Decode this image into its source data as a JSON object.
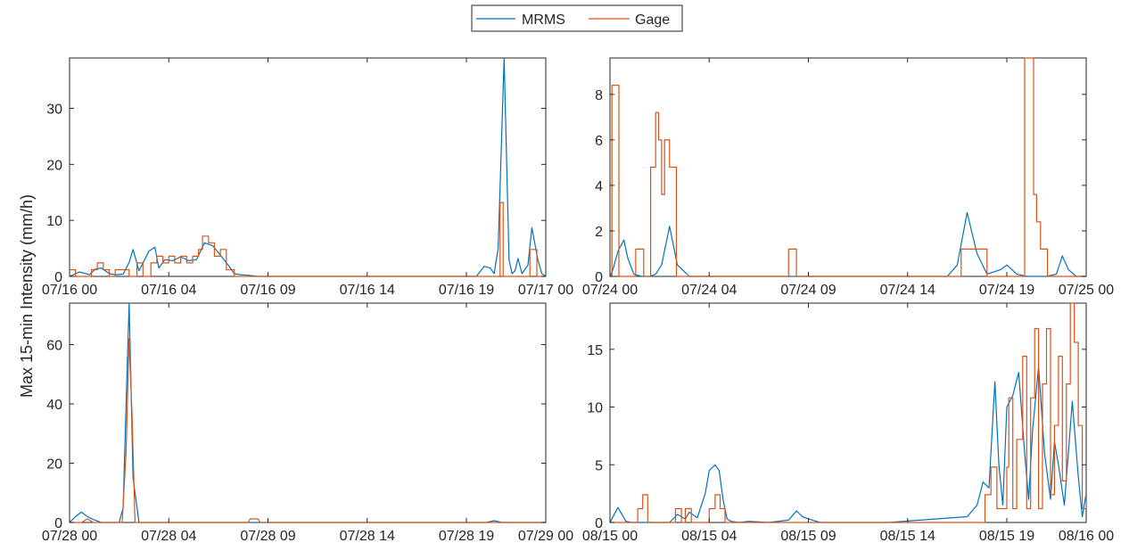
{
  "figure": {
    "ylabel": "Max 15-min Intensity (mm/h)",
    "colors": {
      "MRMS": "#0072BD",
      "Gage": "#D95319"
    }
  },
  "legend": {
    "position": "top-center",
    "entries": [
      {
        "name": "MRMS",
        "color": "#0072BD"
      },
      {
        "name": "Gage",
        "color": "#D95319"
      }
    ]
  },
  "chart_data": [
    {
      "type": "line",
      "panel": "top-left",
      "xlim": [
        0,
        24
      ],
      "ylim": [
        0,
        39
      ],
      "xticks": [
        0,
        5,
        10,
        15,
        20,
        24
      ],
      "xticklabels": [
        "07/16 00",
        "07/16 04",
        "07/16 09",
        "07/16 14",
        "07/16 19",
        "07/17 00"
      ],
      "yticks": [
        0,
        10,
        20,
        30
      ],
      "yticklabels": [
        "0",
        "10",
        "20",
        "30"
      ],
      "grid": false,
      "series": [
        {
          "name": "MRMS",
          "color": "#0072BD",
          "step": false,
          "x": [
            0,
            0.5,
            1.0,
            1.3,
            1.6,
            2.0,
            2.3,
            2.7,
            3.0,
            3.2,
            3.5,
            4.0,
            4.3,
            4.5,
            4.8,
            5.2,
            5.6,
            6.0,
            6.4,
            6.8,
            7.2,
            7.6,
            8.0,
            8.3,
            8.6,
            9.0,
            9.5,
            10.0,
            12.0,
            15.0,
            18.0,
            20.5,
            20.9,
            21.2,
            21.4,
            21.6,
            21.9,
            22.15,
            22.3,
            22.45,
            22.6,
            22.8,
            23.1,
            23.3,
            23.6,
            23.8,
            24.0
          ],
          "y": [
            0,
            0.8,
            0.3,
            1.3,
            1.5,
            0.5,
            0.3,
            0.4,
            2.5,
            4.8,
            1.0,
            4.5,
            5.2,
            1.5,
            3.0,
            2.8,
            3.5,
            2.8,
            3.0,
            6.0,
            5.5,
            3.8,
            2.0,
            0.5,
            0.3,
            0.2,
            0,
            0,
            0,
            0,
            0,
            0,
            1.8,
            1.5,
            0.5,
            5.0,
            39.0,
            3.0,
            0.5,
            1.0,
            3.2,
            0.5,
            2.0,
            8.7,
            3.0,
            0.5,
            0
          ]
        },
        {
          "name": "Gage",
          "color": "#D95319",
          "step": true,
          "x": [
            0,
            0.3,
            0.6,
            1.1,
            1.4,
            1.7,
            2.0,
            2.3,
            3.0,
            3.4,
            3.7,
            4.1,
            4.4,
            4.7,
            5.0,
            5.3,
            5.6,
            5.9,
            6.2,
            6.5,
            6.7,
            7.0,
            7.3,
            7.6,
            7.9,
            8.3,
            8.6,
            21.7,
            21.85,
            22.1,
            23.2,
            23.55,
            24.0
          ],
          "y": [
            1.2,
            0,
            0,
            1.2,
            2.4,
            1.2,
            0,
            1.2,
            0,
            2.4,
            0,
            2.4,
            3.6,
            2.4,
            3.6,
            2.4,
            3.6,
            2.4,
            3.6,
            4.8,
            7.2,
            6.0,
            3.6,
            4.8,
            1.2,
            0,
            0,
            13.2,
            0,
            0,
            4.8,
            0,
            0
          ]
        }
      ]
    },
    {
      "type": "line",
      "panel": "top-right",
      "xlim": [
        0,
        24
      ],
      "ylim": [
        0,
        9.6
      ],
      "xticks": [
        0,
        5,
        10,
        15,
        20,
        24
      ],
      "xticklabels": [
        "07/24 00",
        "07/24 04",
        "07/24 09",
        "07/24 14",
        "07/24 19",
        "07/25 00"
      ],
      "yticks": [
        0,
        2,
        4,
        6,
        8
      ],
      "yticklabels": [
        "0",
        "2",
        "4",
        "6",
        "8"
      ],
      "grid": false,
      "series": [
        {
          "name": "MRMS",
          "color": "#0072BD",
          "step": false,
          "x": [
            0,
            0.15,
            0.4,
            0.7,
            0.9,
            1.2,
            1.6,
            2.0,
            2.3,
            2.6,
            3.0,
            3.4,
            4.0,
            8.0,
            12.0,
            16.0,
            17.0,
            17.5,
            18.0,
            18.5,
            19.0,
            19.7,
            20.0,
            20.5,
            21.0,
            22.0,
            22.5,
            22.8,
            23.1,
            23.5,
            24.0
          ],
          "y": [
            0,
            0.3,
            1.1,
            1.6,
            0.8,
            0.1,
            0,
            0,
            0.1,
            0.5,
            2.2,
            0.5,
            0,
            0,
            0,
            0,
            0,
            0.5,
            2.8,
            1.0,
            0.1,
            0.3,
            0.5,
            0.1,
            0,
            0,
            0.1,
            0.9,
            0.3,
            0,
            0
          ]
        },
        {
          "name": "Gage",
          "color": "#D95319",
          "step": true,
          "x": [
            0,
            0.1,
            0.45,
            0.9,
            1.3,
            1.7,
            2.05,
            2.3,
            2.45,
            2.6,
            2.75,
            3.0,
            3.35,
            3.7,
            9.0,
            9.4,
            17.7,
            18.45,
            19.0,
            20.9,
            21.35,
            21.5,
            21.7,
            21.85,
            22.05,
            22.5,
            24.0
          ],
          "y": [
            0,
            8.4,
            0,
            0,
            1.2,
            0,
            4.8,
            7.2,
            6.0,
            3.6,
            6.0,
            4.8,
            0,
            0,
            1.2,
            0,
            1.2,
            1.2,
            0,
            9.6,
            3.6,
            2.4,
            1.2,
            1.2,
            0,
            0,
            0
          ]
        }
      ]
    },
    {
      "type": "line",
      "panel": "bottom-left",
      "xlim": [
        0,
        24
      ],
      "ylim": [
        0,
        74
      ],
      "xticks": [
        0,
        5,
        10,
        15,
        20,
        24
      ],
      "xticklabels": [
        "07/28 00",
        "07/28 04",
        "07/28 09",
        "07/28 14",
        "07/28 19",
        "07/29 00"
      ],
      "yticks": [
        0,
        20,
        40,
        60
      ],
      "yticklabels": [
        "0",
        "20",
        "40",
        "60"
      ],
      "grid": false,
      "series": [
        {
          "name": "MRMS",
          "color": "#0072BD",
          "step": false,
          "x": [
            0,
            0.3,
            0.6,
            0.9,
            1.2,
            1.6,
            2.0,
            2.5,
            2.7,
            2.85,
            3.0,
            3.2,
            3.5,
            4.0,
            8.0,
            12.0,
            18.0,
            21.0,
            21.4,
            21.8,
            24.0
          ],
          "y": [
            0,
            2.0,
            3.5,
            2.0,
            1.0,
            0,
            0,
            0,
            5.0,
            40.0,
            74.0,
            15.0,
            0,
            0,
            0,
            0,
            0,
            0,
            0.6,
            0,
            0
          ]
        },
        {
          "name": "Gage",
          "color": "#D95319",
          "step": false,
          "x": [
            0,
            0.6,
            0.9,
            1.2,
            2.4,
            2.65,
            2.85,
            3.0,
            3.15,
            3.3,
            3.5,
            9.0,
            9.1,
            9.5,
            9.6,
            24.0
          ],
          "y": [
            0,
            0,
            1.2,
            0,
            0,
            0,
            24.0,
            62.0,
            36.0,
            0,
            0,
            0,
            1.2,
            1.2,
            0,
            0
          ]
        }
      ]
    },
    {
      "type": "line",
      "panel": "bottom-right",
      "xlim": [
        0,
        24
      ],
      "ylim": [
        0,
        19
      ],
      "xticks": [
        0,
        5,
        10,
        15,
        20,
        24
      ],
      "xticklabels": [
        "08/15 00",
        "08/15 04",
        "08/15 09",
        "08/15 14",
        "08/15 19",
        "08/16 00"
      ],
      "yticks": [
        0,
        5,
        10,
        15
      ],
      "yticklabels": [
        "0",
        "5",
        "10",
        "15"
      ],
      "grid": false,
      "series": [
        {
          "name": "MRMS",
          "color": "#0072BD",
          "step": false,
          "x": [
            0,
            0.4,
            0.8,
            1.1,
            1.5,
            3.0,
            3.4,
            3.8,
            4.0,
            4.4,
            4.8,
            5.0,
            5.3,
            5.5,
            5.7,
            5.9,
            6.1,
            6.5,
            7.0,
            8.0,
            9.0,
            9.4,
            9.7,
            10.2,
            10.6,
            11.0,
            14.0,
            18.0,
            18.5,
            18.8,
            19.1,
            19.4,
            19.6,
            19.8,
            20.0,
            20.3,
            20.6,
            20.9,
            21.1,
            21.3,
            21.6,
            21.9,
            22.2,
            22.4,
            22.6,
            22.9,
            23.1,
            23.3,
            23.6,
            23.8,
            24.0
          ],
          "y": [
            0,
            1.3,
            0.1,
            0,
            0,
            0,
            0.7,
            0.3,
            0.9,
            0.4,
            2.5,
            4.5,
            5.0,
            4.5,
            2.0,
            0.3,
            0.1,
            0,
            0.1,
            0,
            0.2,
            1.0,
            0.5,
            0.2,
            0,
            0,
            0,
            0.5,
            1.5,
            3.5,
            3.0,
            12.2,
            5.0,
            1.5,
            10.0,
            11.0,
            13.0,
            6.0,
            2.0,
            8.0,
            13.5,
            6.0,
            2.0,
            7.0,
            5.0,
            1.5,
            6.0,
            10.5,
            4.0,
            0.5,
            2.5
          ]
        },
        {
          "name": "Gage",
          "color": "#D95319",
          "step": true,
          "x": [
            0,
            1.4,
            1.65,
            1.9,
            3.3,
            3.6,
            3.8,
            4.1,
            4.4,
            5.0,
            5.3,
            5.55,
            5.8,
            18.9,
            19.2,
            19.5,
            20.0,
            20.1,
            20.3,
            20.5,
            20.8,
            21.0,
            21.2,
            21.4,
            21.6,
            21.8,
            22.0,
            22.2,
            22.4,
            22.6,
            22.8,
            23.0,
            23.2,
            23.4,
            23.6,
            23.8,
            24.0
          ],
          "y": [
            0,
            1.2,
            2.4,
            0,
            1.2,
            0,
            1.2,
            0,
            0,
            1.2,
            2.4,
            1.2,
            0,
            2.4,
            4.8,
            1.2,
            4.8,
            10.8,
            1.2,
            7.2,
            14.4,
            1.2,
            10.8,
            16.8,
            1.2,
            12.0,
            16.8,
            2.4,
            8.4,
            14.4,
            3.6,
            12.0,
            19.0,
            15.6,
            8.4,
            1.2,
            2.4
          ]
        }
      ]
    }
  ]
}
